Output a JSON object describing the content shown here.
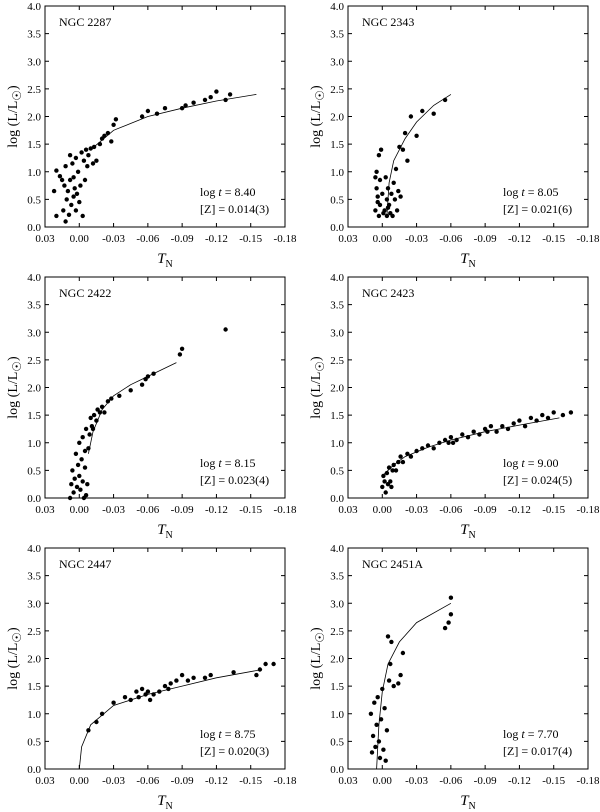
{
  "figure": {
    "xtick_labels": [
      "0.03",
      "0.00",
      "-0.03",
      "-0.06",
      "-0.09",
      "-0.12",
      "-0.15",
      "-0.18"
    ],
    "ytick_labels": [
      "0.0",
      "0.5",
      "1.0",
      "1.5",
      "2.0",
      "2.5",
      "3.0",
      "3.5",
      "4.0"
    ],
    "ylabel_main": "log (L/L",
    "ylabel_close": ")",
    "xlabel_main": "T",
    "xlabel_sub": "N",
    "age_prefix": "log ",
    "age_var": "t",
    "age_eq": " = "
  },
  "chart_data": [
    {
      "type": "scatter",
      "title": "NGC 2287",
      "age": "8.40",
      "metallicity": "[Z] = 0.014(3)",
      "xlabel": "T_N",
      "ylabel": "log (L/L_sun)",
      "xlim": [
        0.03,
        -0.18
      ],
      "ylim": [
        0.0,
        4.0
      ],
      "points": [
        [
          0.022,
          0.65
        ],
        [
          0.02,
          1.02
        ],
        [
          0.02,
          0.2
        ],
        [
          0.017,
          0.92
        ],
        [
          0.015,
          0.85
        ],
        [
          0.014,
          0.3
        ],
        [
          0.013,
          0.75
        ],
        [
          0.012,
          0.1
        ],
        [
          0.012,
          1.1
        ],
        [
          0.011,
          0.5
        ],
        [
          0.01,
          0.65
        ],
        [
          0.009,
          0.22
        ],
        [
          0.008,
          0.85
        ],
        [
          0.008,
          1.3
        ],
        [
          0.007,
          0.4
        ],
        [
          0.006,
          1.15
        ],
        [
          0.005,
          0.55
        ],
        [
          0.005,
          0.9
        ],
        [
          0.004,
          0.7
        ],
        [
          0.003,
          1.25
        ],
        [
          0.003,
          0.3
        ],
        [
          0.002,
          0.6
        ],
        [
          0.001,
          1.0
        ],
        [
          0.0,
          0.45
        ],
        [
          -0.001,
          0.75
        ],
        [
          -0.002,
          1.35
        ],
        [
          -0.003,
          0.2
        ],
        [
          -0.004,
          1.2
        ],
        [
          -0.005,
          0.85
        ],
        [
          -0.006,
          1.4
        ],
        [
          -0.007,
          1.1
        ],
        [
          -0.008,
          1.3
        ],
        [
          -0.01,
          1.42
        ],
        [
          -0.012,
          1.15
        ],
        [
          -0.013,
          1.45
        ],
        [
          -0.015,
          1.2
        ],
        [
          -0.018,
          1.5
        ],
        [
          -0.02,
          1.6
        ],
        [
          -0.022,
          1.65
        ],
        [
          -0.025,
          1.7
        ],
        [
          -0.028,
          1.55
        ],
        [
          -0.03,
          1.85
        ],
        [
          -0.032,
          1.95
        ],
        [
          -0.055,
          2.0
        ],
        [
          -0.06,
          2.1
        ],
        [
          -0.068,
          2.05
        ],
        [
          -0.075,
          2.15
        ],
        [
          -0.09,
          2.15
        ],
        [
          -0.093,
          2.2
        ],
        [
          -0.1,
          2.25
        ],
        [
          -0.11,
          2.3
        ],
        [
          -0.115,
          2.35
        ],
        [
          -0.12,
          2.45
        ],
        [
          -0.128,
          2.3
        ],
        [
          -0.132,
          2.4
        ]
      ],
      "curve": [
        [
          -0.01,
          1.4
        ],
        [
          -0.03,
          1.75
        ],
        [
          -0.06,
          2.0
        ],
        [
          -0.09,
          2.15
        ],
        [
          -0.12,
          2.28
        ],
        [
          -0.155,
          2.4
        ]
      ]
    },
    {
      "type": "scatter",
      "title": "NGC 2343",
      "age": "8.05",
      "metallicity": "[Z] = 0.021(6)",
      "xlabel": "T_N",
      "ylabel": "log (L/L_sun)",
      "xlim": [
        0.03,
        -0.18
      ],
      "ylim": [
        0.0,
        4.0
      ],
      "points": [
        [
          0.006,
          0.9
        ],
        [
          0.006,
          0.3
        ],
        [
          0.005,
          1.0
        ],
        [
          0.005,
          0.7
        ],
        [
          0.004,
          0.55
        ],
        [
          0.004,
          0.45
        ],
        [
          0.003,
          1.3
        ],
        [
          0.003,
          0.2
        ],
        [
          0.002,
          0.85
        ],
        [
          0.002,
          0.4
        ],
        [
          0.001,
          1.4
        ],
        [
          0.0,
          0.6
        ],
        [
          -0.001,
          0.25
        ],
        [
          -0.002,
          0.3
        ],
        [
          -0.003,
          0.9
        ],
        [
          -0.004,
          0.5
        ],
        [
          -0.004,
          0.2
        ],
        [
          -0.005,
          0.7
        ],
        [
          -0.005,
          0.35
        ],
        [
          -0.006,
          0.4
        ],
        [
          -0.007,
          0.25
        ],
        [
          -0.008,
          0.6
        ],
        [
          -0.009,
          0.2
        ],
        [
          -0.01,
          0.8
        ],
        [
          -0.011,
          0.5
        ],
        [
          -0.012,
          1.05
        ],
        [
          -0.013,
          0.3
        ],
        [
          -0.014,
          0.65
        ],
        [
          -0.015,
          1.45
        ],
        [
          -0.016,
          0.55
        ],
        [
          -0.018,
          1.4
        ],
        [
          -0.02,
          1.7
        ],
        [
          -0.022,
          1.2
        ],
        [
          -0.025,
          2.0
        ],
        [
          -0.03,
          1.65
        ],
        [
          -0.035,
          2.1
        ],
        [
          -0.045,
          2.05
        ],
        [
          -0.055,
          2.3
        ]
      ],
      "curve": [
        [
          -0.004,
          0.2
        ],
        [
          -0.006,
          0.8
        ],
        [
          -0.01,
          1.2
        ],
        [
          -0.02,
          1.6
        ],
        [
          -0.03,
          1.9
        ],
        [
          -0.045,
          2.2
        ],
        [
          -0.06,
          2.4
        ]
      ]
    },
    {
      "type": "scatter",
      "title": "NGC 2422",
      "age": "8.15",
      "metallicity": "[Z] = 0.023(4)",
      "xlabel": "T_N",
      "ylabel": "log (L/L_sun)",
      "xlim": [
        0.03,
        -0.18
      ],
      "ylim": [
        0.0,
        4.0
      ],
      "points": [
        [
          0.008,
          0.0
        ],
        [
          0.007,
          0.25
        ],
        [
          0.006,
          0.5
        ],
        [
          0.005,
          0.1
        ],
        [
          0.004,
          0.35
        ],
        [
          0.003,
          0.8
        ],
        [
          0.002,
          0.2
        ],
        [
          0.001,
          0.6
        ],
        [
          0.0,
          1.0
        ],
        [
          0.0,
          0.4
        ],
        [
          -0.001,
          0.15
        ],
        [
          -0.002,
          0.7
        ],
        [
          -0.003,
          1.1
        ],
        [
          -0.003,
          0.3
        ],
        [
          -0.004,
          0.0
        ],
        [
          -0.005,
          0.85
        ],
        [
          -0.005,
          0.55
        ],
        [
          -0.006,
          1.25
        ],
        [
          -0.006,
          0.05
        ],
        [
          -0.007,
          0.25
        ],
        [
          -0.008,
          0.9
        ],
        [
          -0.009,
          1.15
        ],
        [
          -0.01,
          1.45
        ],
        [
          -0.011,
          1.3
        ],
        [
          -0.012,
          1.25
        ],
        [
          -0.013,
          1.5
        ],
        [
          -0.015,
          1.4
        ],
        [
          -0.016,
          1.6
        ],
        [
          -0.018,
          1.55
        ],
        [
          -0.02,
          1.65
        ],
        [
          -0.022,
          1.55
        ],
        [
          -0.025,
          1.75
        ],
        [
          -0.028,
          1.8
        ],
        [
          -0.035,
          1.85
        ],
        [
          -0.045,
          1.95
        ],
        [
          -0.055,
          2.05
        ],
        [
          -0.058,
          2.15
        ],
        [
          -0.06,
          2.2
        ],
        [
          -0.065,
          2.25
        ],
        [
          -0.088,
          2.6
        ],
        [
          -0.09,
          2.7
        ],
        [
          -0.128,
          3.05
        ]
      ],
      "curve": [
        [
          -0.008,
          0.8
        ],
        [
          -0.012,
          1.2
        ],
        [
          -0.02,
          1.6
        ],
        [
          -0.03,
          1.85
        ],
        [
          -0.045,
          2.05
        ],
        [
          -0.06,
          2.2
        ],
        [
          -0.085,
          2.45
        ]
      ]
    },
    {
      "type": "scatter",
      "title": "NGC 2423",
      "age": "9.00",
      "metallicity": "[Z] = 0.024(5)",
      "xlabel": "T_N",
      "ylabel": "log (L/L_sun)",
      "xlim": [
        0.03,
        -0.18
      ],
      "ylim": [
        0.0,
        4.0
      ],
      "points": [
        [
          0.0,
          0.2
        ],
        [
          -0.001,
          0.4
        ],
        [
          -0.002,
          0.3
        ],
        [
          -0.003,
          0.1
        ],
        [
          -0.004,
          0.45
        ],
        [
          -0.005,
          0.25
        ],
        [
          -0.006,
          0.55
        ],
        [
          -0.007,
          0.3
        ],
        [
          -0.008,
          0.2
        ],
        [
          -0.009,
          0.5
        ],
        [
          -0.01,
          0.6
        ],
        [
          -0.012,
          0.5
        ],
        [
          -0.014,
          0.65
        ],
        [
          -0.016,
          0.75
        ],
        [
          -0.018,
          0.65
        ],
        [
          -0.022,
          0.8
        ],
        [
          -0.025,
          0.75
        ],
        [
          -0.03,
          0.85
        ],
        [
          -0.035,
          0.9
        ],
        [
          -0.04,
          0.95
        ],
        [
          -0.045,
          0.9
        ],
        [
          -0.05,
          1.0
        ],
        [
          -0.055,
          1.05
        ],
        [
          -0.058,
          1.0
        ],
        [
          -0.06,
          1.1
        ],
        [
          -0.062,
          1.0
        ],
        [
          -0.065,
          1.05
        ],
        [
          -0.07,
          1.15
        ],
        [
          -0.075,
          1.1
        ],
        [
          -0.08,
          1.2
        ],
        [
          -0.085,
          1.15
        ],
        [
          -0.09,
          1.25
        ],
        [
          -0.092,
          1.2
        ],
        [
          -0.095,
          1.3
        ],
        [
          -0.1,
          1.2
        ],
        [
          -0.105,
          1.3
        ],
        [
          -0.11,
          1.25
        ],
        [
          -0.115,
          1.35
        ],
        [
          -0.12,
          1.4
        ],
        [
          -0.125,
          1.3
        ],
        [
          -0.13,
          1.45
        ],
        [
          -0.135,
          1.4
        ],
        [
          -0.14,
          1.5
        ],
        [
          -0.145,
          1.45
        ],
        [
          -0.15,
          1.55
        ],
        [
          -0.158,
          1.5
        ],
        [
          -0.165,
          1.55
        ]
      ],
      "curve": [
        [
          0.0,
          0.4
        ],
        [
          -0.01,
          0.6
        ],
        [
          -0.02,
          0.75
        ],
        [
          -0.04,
          0.92
        ],
        [
          -0.06,
          1.05
        ],
        [
          -0.09,
          1.2
        ],
        [
          -0.12,
          1.32
        ],
        [
          -0.155,
          1.45
        ]
      ]
    },
    {
      "type": "scatter",
      "title": "NGC 2447",
      "age": "8.75",
      "metallicity": "[Z] = 0.020(3)",
      "xlabel": "T_N",
      "ylabel": "log (L/L_sun)",
      "xlim": [
        0.03,
        -0.18
      ],
      "ylim": [
        0.0,
        4.0
      ],
      "points": [
        [
          -0.008,
          0.7
        ],
        [
          -0.015,
          0.85
        ],
        [
          -0.02,
          1.0
        ],
        [
          -0.03,
          1.2
        ],
        [
          -0.04,
          1.3
        ],
        [
          -0.045,
          1.25
        ],
        [
          -0.05,
          1.4
        ],
        [
          -0.052,
          1.3
        ],
        [
          -0.055,
          1.45
        ],
        [
          -0.058,
          1.35
        ],
        [
          -0.06,
          1.4
        ],
        [
          -0.062,
          1.25
        ],
        [
          -0.065,
          1.35
        ],
        [
          -0.07,
          1.4
        ],
        [
          -0.075,
          1.5
        ],
        [
          -0.078,
          1.45
        ],
        [
          -0.08,
          1.55
        ],
        [
          -0.085,
          1.6
        ],
        [
          -0.09,
          1.7
        ],
        [
          -0.095,
          1.6
        ],
        [
          -0.1,
          1.65
        ],
        [
          -0.11,
          1.65
        ],
        [
          -0.115,
          1.7
        ],
        [
          -0.135,
          1.75
        ],
        [
          -0.155,
          1.7
        ],
        [
          -0.158,
          1.8
        ],
        [
          -0.163,
          1.9
        ],
        [
          -0.17,
          1.9
        ]
      ],
      "curve": [
        [
          0.0,
          0.0
        ],
        [
          -0.002,
          0.4
        ],
        [
          -0.01,
          0.8
        ],
        [
          -0.03,
          1.15
        ],
        [
          -0.06,
          1.35
        ],
        [
          -0.09,
          1.5
        ],
        [
          -0.12,
          1.65
        ],
        [
          -0.16,
          1.8
        ]
      ]
    },
    {
      "type": "scatter",
      "title": "NGC 2451A",
      "age": "7.70",
      "metallicity": "[Z] = 0.017(4)",
      "xlabel": "T_N",
      "ylabel": "log (L/L_sun)",
      "xlim": [
        0.03,
        -0.18
      ],
      "ylim": [
        0.0,
        4.0
      ],
      "points": [
        [
          0.01,
          1.0
        ],
        [
          0.009,
          0.3
        ],
        [
          0.008,
          0.6
        ],
        [
          0.007,
          1.2
        ],
        [
          0.006,
          0.4
        ],
        [
          0.005,
          0.8
        ],
        [
          0.004,
          1.3
        ],
        [
          0.003,
          0.5
        ],
        [
          0.002,
          0.2
        ],
        [
          0.001,
          0.9
        ],
        [
          0.0,
          1.45
        ],
        [
          -0.001,
          0.35
        ],
        [
          -0.002,
          1.1
        ],
        [
          -0.003,
          0.15
        ],
        [
          -0.004,
          0.7
        ],
        [
          -0.005,
          2.4
        ],
        [
          -0.006,
          1.6
        ],
        [
          -0.007,
          1.9
        ],
        [
          -0.008,
          2.3
        ],
        [
          -0.01,
          1.5
        ],
        [
          -0.014,
          1.55
        ],
        [
          -0.016,
          1.7
        ],
        [
          -0.018,
          2.1
        ],
        [
          -0.055,
          2.55
        ],
        [
          -0.058,
          2.65
        ],
        [
          -0.06,
          2.8
        ],
        [
          -0.06,
          3.1
        ]
      ],
      "curve": [
        [
          0.005,
          0.0
        ],
        [
          0.003,
          0.8
        ],
        [
          0.0,
          1.4
        ],
        [
          -0.005,
          1.9
        ],
        [
          -0.015,
          2.3
        ],
        [
          -0.03,
          2.65
        ],
        [
          -0.06,
          3.0
        ]
      ]
    }
  ]
}
